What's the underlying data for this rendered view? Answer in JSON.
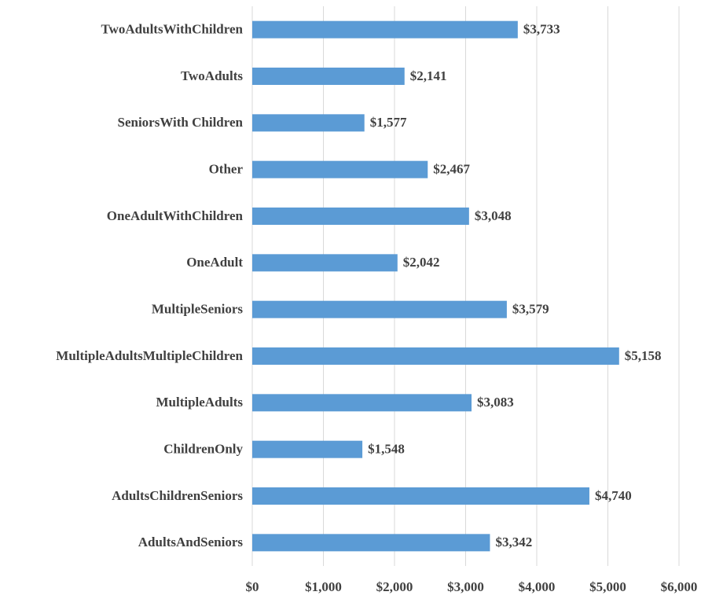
{
  "chart_data": {
    "type": "barh",
    "categories": [
      "TwoAdultsWithChildren",
      "TwoAdults",
      "SeniorsWith Children",
      "Other",
      "OneAdultWithChildren",
      "OneAdult",
      "MultipleSeniors",
      "MultipleAdultsMultipleChildren",
      "MultipleAdults",
      "ChildrenOnly",
      "AdultsChildrenSeniors",
      "AdultsAndSeniors"
    ],
    "values": [
      3733,
      2141,
      1577,
      2467,
      3048,
      2042,
      3579,
      5158,
      3083,
      1548,
      4740,
      3342
    ],
    "value_labels": [
      "$3,733",
      "$2,141",
      "$1,577",
      "$2,467",
      "$3,048",
      "$2,042",
      "$3,579",
      "$5,158",
      "$3,083",
      "$1,548",
      "$4,740",
      "$3,342"
    ],
    "color": "#5b9bd5",
    "xlim": [
      0,
      6000
    ],
    "xticks": [
      {
        "value": 0,
        "label": "$0"
      },
      {
        "value": 1000,
        "label": "$1,000"
      },
      {
        "value": 2000,
        "label": "$2,000"
      },
      {
        "value": 3000,
        "label": "$3,000"
      },
      {
        "value": 4000,
        "label": "$4,000"
      },
      {
        "value": 5000,
        "label": "$5,000"
      },
      {
        "value": 6000,
        "label": "$6,000"
      }
    ],
    "grid": true
  }
}
